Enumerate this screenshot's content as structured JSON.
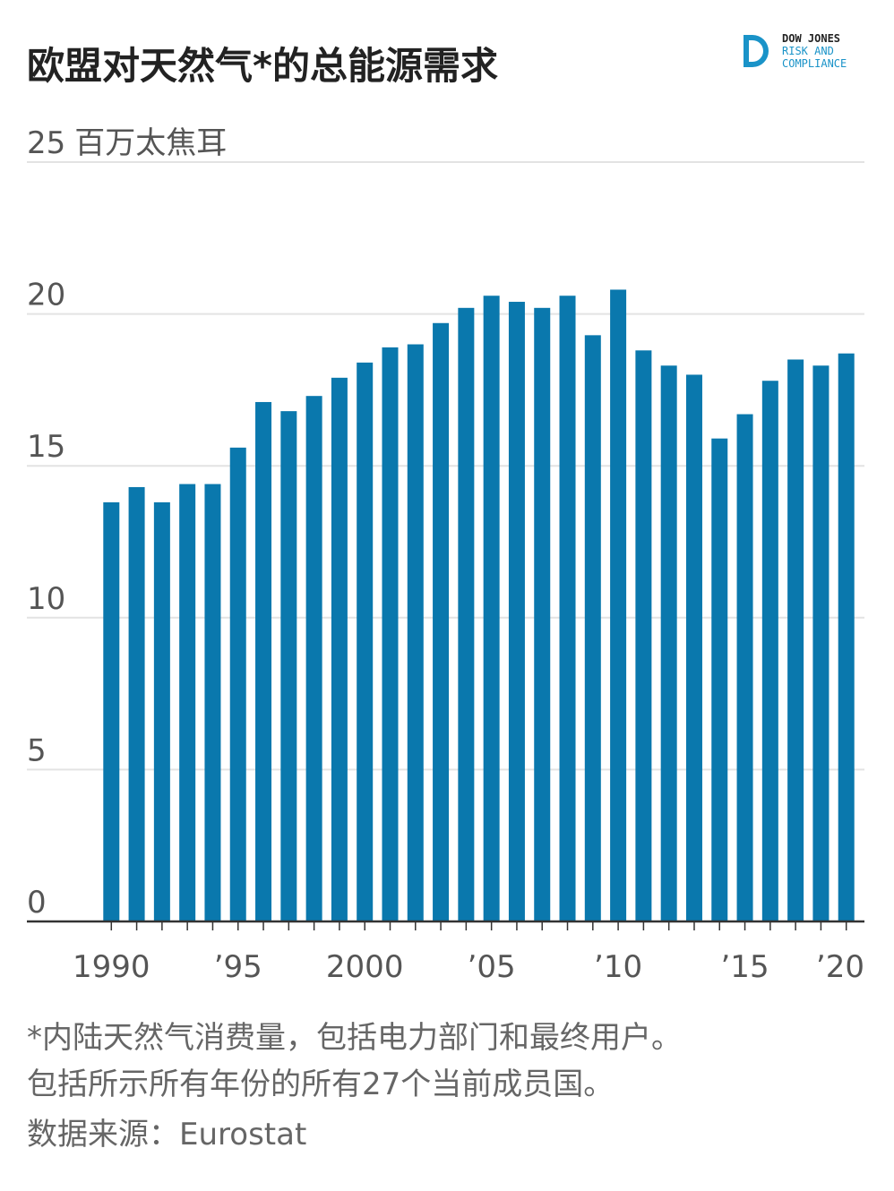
{
  "chart_data": {
    "type": "bar",
    "title": "欧盟对天然气*的总能源需求",
    "y_unit": "百万太焦耳",
    "x": [
      1990,
      1991,
      1992,
      1993,
      1994,
      1995,
      1996,
      1997,
      1998,
      1999,
      2000,
      2001,
      2002,
      2003,
      2004,
      2005,
      2006,
      2007,
      2008,
      2009,
      2010,
      2011,
      2012,
      2013,
      2014,
      2015,
      2016,
      2017,
      2018,
      2019
    ],
    "values": [
      13.8,
      14.3,
      13.8,
      14.4,
      14.4,
      15.6,
      17.1,
      16.8,
      17.3,
      17.9,
      18.4,
      18.9,
      19.0,
      19.7,
      20.2,
      20.6,
      20.4,
      20.2,
      20.6,
      19.3,
      20.8,
      18.8,
      18.3,
      18.0,
      15.9,
      16.7,
      17.8,
      18.5,
      18.3,
      18.7
    ],
    "color": "#0a78ad",
    "xlim": [
      1989,
      2020
    ],
    "xticks": [
      {
        "value": 1990,
        "label": "1990"
      },
      {
        "value": 1995,
        "label": "’95"
      },
      {
        "value": 2000,
        "label": "2000"
      },
      {
        "value": 2005,
        "label": "’05"
      },
      {
        "value": 2010,
        "label": "’10"
      },
      {
        "value": 2015,
        "label": "’15"
      },
      {
        "value": 2020,
        "label": "’20"
      }
    ],
    "ylim": [
      0,
      25
    ],
    "yticks": [
      0,
      5,
      10,
      15,
      20,
      25
    ],
    "grid": true,
    "notes": [
      "*内陆天然气消费量，包括电力部门和最终用户。",
      "包括所示所有年份的所有27个当前成员国。",
      "数据来源：Eurostat"
    ],
    "logo": [
      "DOW JONES",
      "RISK AND",
      "COMPLIANCE"
    ]
  }
}
